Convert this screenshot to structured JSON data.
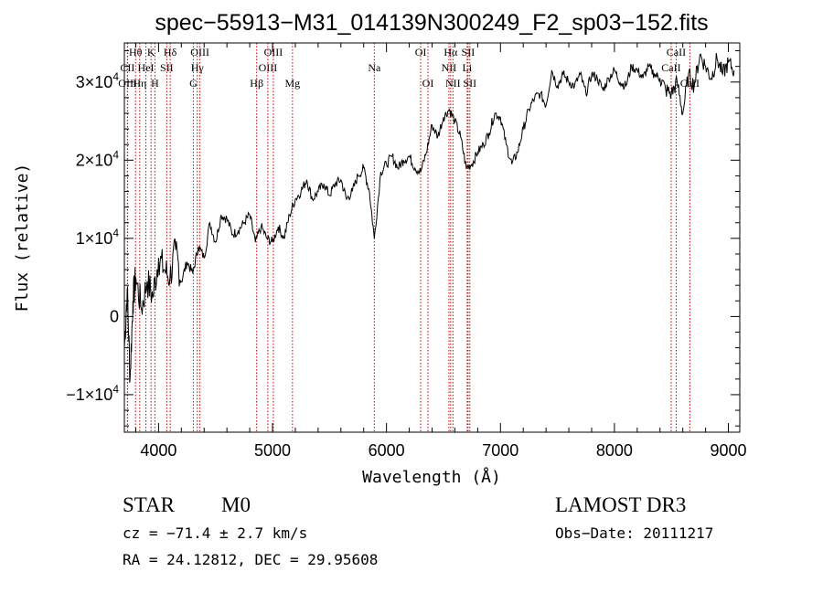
{
  "chart_data": {
    "type": "line",
    "title": "spec−55913−M31_014139N300249_F2_sp03−152.fits",
    "xlabel": "Wavelength (Å)",
    "ylabel": "Flux (relative)",
    "xlim": [
      3700,
      9100
    ],
    "ylim": [
      -14800,
      35000
    ],
    "xticks": [
      4000,
      5000,
      6000,
      7000,
      8000,
      9000
    ],
    "xtick_labels": [
      "4000",
      "5000",
      "6000",
      "7000",
      "8000",
      "9000"
    ],
    "yticks": [
      -10000,
      0,
      10000,
      20000,
      30000
    ],
    "ytick_labels": [
      {
        "mant": "−1×10",
        "exp": "4"
      },
      {
        "mant": "0",
        "exp": ""
      },
      {
        "mant": "1×10",
        "exp": "4"
      },
      {
        "mant": "2×10",
        "exp": "4"
      },
      {
        "mant": "3×10",
        "exp": "4"
      }
    ],
    "spectrum": {
      "name": "Flux",
      "x": [
        3700,
        3725,
        3750,
        3775,
        3800,
        3850,
        3900,
        3950,
        4000,
        4050,
        4100,
        4150,
        4200,
        4250,
        4300,
        4350,
        4400,
        4450,
        4500,
        4550,
        4600,
        4650,
        4700,
        4750,
        4800,
        4850,
        4900,
        4950,
        5000,
        5050,
        5100,
        5150,
        5200,
        5250,
        5300,
        5350,
        5400,
        5450,
        5500,
        5550,
        5600,
        5650,
        5700,
        5750,
        5800,
        5850,
        5893,
        5950,
        6000,
        6050,
        6100,
        6150,
        6200,
        6250,
        6300,
        6350,
        6400,
        6450,
        6500,
        6550,
        6600,
        6650,
        6700,
        6750,
        6800,
        6850,
        6900,
        6950,
        7000,
        7050,
        7100,
        7150,
        7200,
        7250,
        7300,
        7350,
        7400,
        7450,
        7500,
        7550,
        7600,
        7650,
        7700,
        7750,
        7800,
        7850,
        7900,
        7950,
        8000,
        8050,
        8100,
        8150,
        8200,
        8250,
        8300,
        8350,
        8400,
        8450,
        8500,
        8550,
        8600,
        8650,
        8700,
        8750,
        8800,
        8850,
        8900,
        8950,
        9000,
        9050
      ],
      "y": [
        -4000,
        3500,
        -8000,
        2000,
        5000,
        1000,
        4500,
        2500,
        7500,
        6000,
        5000,
        8500,
        4500,
        7000,
        5500,
        9000,
        7500,
        12000,
        9500,
        13000,
        12500,
        10500,
        11000,
        12000,
        13000,
        9500,
        11500,
        10000,
        9500,
        11500,
        10000,
        13000,
        15000,
        16000,
        17500,
        15000,
        16000,
        17000,
        15500,
        17000,
        17500,
        15000,
        16000,
        18000,
        19000,
        16000,
        10000,
        18500,
        19500,
        20500,
        19000,
        20000,
        20500,
        19000,
        18500,
        21000,
        24500,
        23000,
        25500,
        26500,
        25000,
        23000,
        19000,
        19500,
        21000,
        22000,
        23500,
        26000,
        25500,
        22000,
        19500,
        21000,
        24000,
        26500,
        28000,
        28500,
        27000,
        31500,
        29500,
        31000,
        30000,
        29500,
        31000,
        28500,
        31000,
        30500,
        29000,
        30500,
        31500,
        30000,
        29500,
        32000,
        31500,
        30500,
        32000,
        31000,
        30500,
        29000,
        28500,
        30000,
        26000,
        31000,
        29500,
        33500,
        32000,
        30500,
        33000,
        31000,
        32500,
        31500
      ]
    },
    "lines": [
      {
        "name": "Hθ",
        "x": 3798,
        "row": 0
      },
      {
        "name": "K",
        "x": 3934,
        "row": 0
      },
      {
        "name": "Hδ",
        "x": 4102,
        "row": 0
      },
      {
        "name": "OIII",
        "x": 4363,
        "row": 0
      },
      {
        "name": "OIII",
        "x": 5007,
        "row": 0
      },
      {
        "name": "OI",
        "x": 6300,
        "row": 0
      },
      {
        "name": "Hα",
        "x": 6563,
        "row": 0
      },
      {
        "name": "SII",
        "x": 6716,
        "row": 0
      },
      {
        "name": "CaII",
        "x": 8542,
        "row": 0
      },
      {
        "name": "CII",
        "x": 3727,
        "row": 1
      },
      {
        "name": "HeI",
        "x": 3889,
        "row": 1
      },
      {
        "name": "SII",
        "x": 4072,
        "row": 1
      },
      {
        "name": "Hγ",
        "x": 4340,
        "row": 1
      },
      {
        "name": "OIII",
        "x": 4959,
        "row": 1
      },
      {
        "name": "Na",
        "x": 5893,
        "row": 1
      },
      {
        "name": "NII",
        "x": 6548,
        "row": 1
      },
      {
        "name": "Li",
        "x": 6708,
        "row": 1
      },
      {
        "name": "CaII",
        "x": 8498,
        "row": 1
      },
      {
        "name": "OIII",
        "x": 3729,
        "row": 2
      },
      {
        "name": "Hη",
        "x": 3835,
        "row": 2
      },
      {
        "name": "H",
        "x": 3968,
        "row": 2
      },
      {
        "name": "G",
        "x": 4305,
        "row": 2
      },
      {
        "name": "Hβ",
        "x": 4861,
        "row": 2
      },
      {
        "name": "Mg",
        "x": 5175,
        "row": 2
      },
      {
        "name": "OI",
        "x": 6364,
        "row": 2
      },
      {
        "name": "NII",
        "x": 6583,
        "row": 2
      },
      {
        "name": "SII",
        "x": 6731,
        "row": 2
      },
      {
        "name": "CaII",
        "x": 8662,
        "row": 2
      }
    ],
    "colors": {
      "spectrum": "#000000",
      "lines": "#cc0000",
      "axes": "#000000"
    }
  },
  "info": {
    "class": "STAR",
    "subclass": "M0",
    "survey": "LAMOST DR3",
    "cz": "cz = −71.4 ± 2.7 km/s",
    "obs_date": "Obs−Date: 20111217",
    "coords": "RA =  24.12812, DEC =  29.95608"
  }
}
